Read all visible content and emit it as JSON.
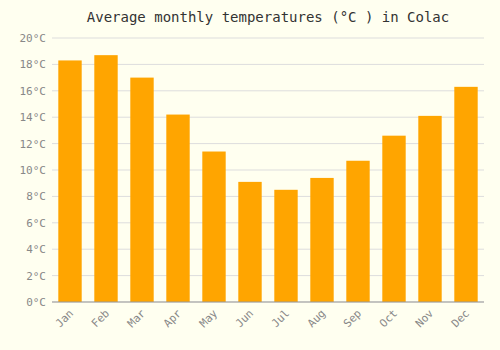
{
  "chart_data": {
    "type": "bar",
    "title": "Average monthly temperatures (°C ) in Colac",
    "categories": [
      "Jan",
      "Feb",
      "Mar",
      "Apr",
      "May",
      "Jun",
      "Jul",
      "Aug",
      "Sep",
      "Oct",
      "Nov",
      "Dec"
    ],
    "values": [
      18.3,
      18.7,
      17.0,
      14.2,
      11.4,
      9.1,
      8.5,
      9.4,
      10.7,
      12.6,
      14.1,
      16.3
    ],
    "color": "#FFA500",
    "ylim": [
      0,
      20
    ],
    "yticks": [
      {
        "value": 0,
        "label": "0°C"
      },
      {
        "value": 2,
        "label": "2°C"
      },
      {
        "value": 4,
        "label": "4°C"
      },
      {
        "value": 6,
        "label": "6°C"
      },
      {
        "value": 8,
        "label": "8°C"
      },
      {
        "value": 10,
        "label": "10°C"
      },
      {
        "value": 12,
        "label": "12°C"
      },
      {
        "value": 14,
        "label": "14°C"
      },
      {
        "value": 16,
        "label": "16°C"
      },
      {
        "value": 18,
        "label": "18°C"
      },
      {
        "value": 20,
        "label": "20°C"
      }
    ],
    "grid": true
  }
}
